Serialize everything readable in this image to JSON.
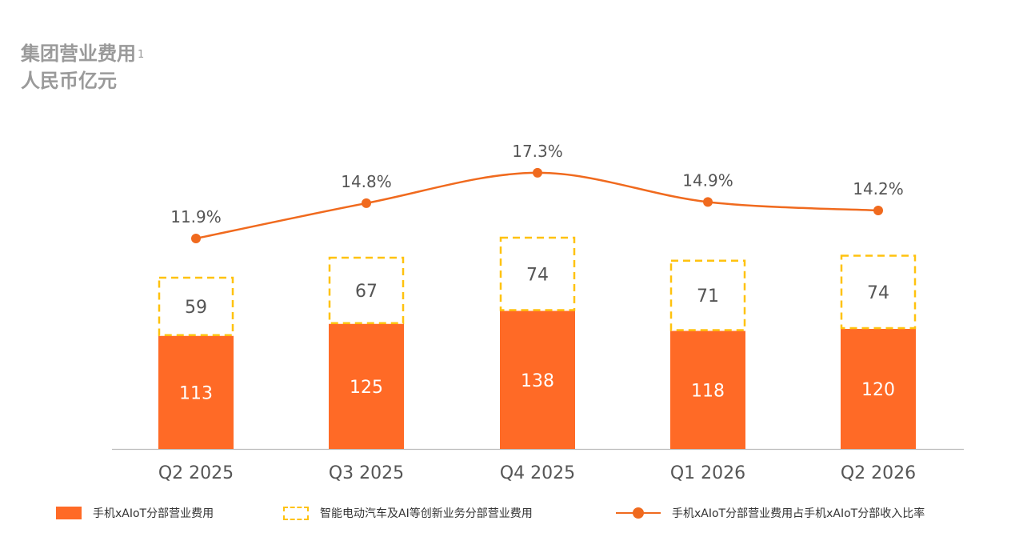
{
  "title": "集团营业费用",
  "title_sup": "1",
  "subtitle": "人民币亿元",
  "chart_data": {
    "type": "bar",
    "stacked": true,
    "categories": [
      "Q2 2025",
      "Q3 2025",
      "Q4 2025",
      "Q1 2026",
      "Q2 2026"
    ],
    "series": [
      {
        "name": "手机xAIoT分部营业费用",
        "type": "bar",
        "values": [
          113,
          125,
          138,
          118,
          120
        ],
        "color": "#ff6a26"
      },
      {
        "name": "智能电动汽车及AI等创新业务分部营业费用",
        "type": "bar-outline",
        "values": [
          59,
          67,
          74,
          71,
          74
        ],
        "color": "#ffc20e"
      },
      {
        "name": "手机xAIoT分部营业费用占手机xAIoT分部收入比率",
        "type": "line",
        "values": [
          11.9,
          14.8,
          17.3,
          14.9,
          14.2
        ],
        "labels": [
          "11.9%",
          "14.8%",
          "17.3%",
          "14.9%",
          "14.2%"
        ],
        "color": "#f06a1e"
      }
    ],
    "title": "集团营业费用",
    "ylabel": "人民币亿元",
    "legend_position": "bottom",
    "grid": false
  }
}
